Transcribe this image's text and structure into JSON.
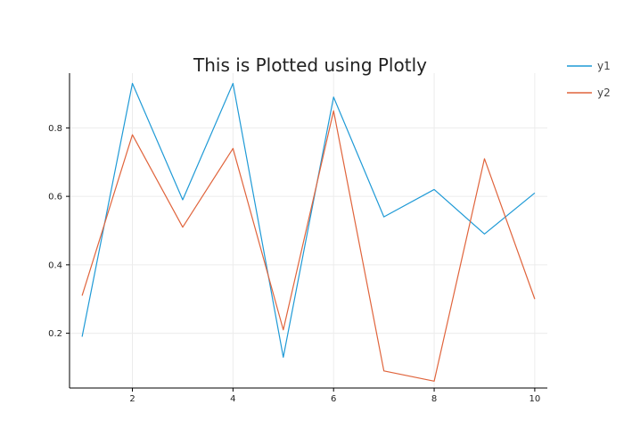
{
  "chart_data": {
    "type": "line",
    "title": "This is Plotted using Plotly",
    "xlabel": "",
    "ylabel": "",
    "x": [
      1,
      2,
      3,
      4,
      5,
      6,
      7,
      8,
      9,
      10
    ],
    "series": [
      {
        "name": "y1",
        "color": "#1f9ad6",
        "values": [
          0.19,
          0.93,
          0.59,
          0.93,
          0.13,
          0.89,
          0.54,
          0.62,
          0.49,
          0.61
        ]
      },
      {
        "name": "y2",
        "color": "#e0643c",
        "values": [
          0.31,
          0.78,
          0.51,
          0.74,
          0.21,
          0.85,
          0.09,
          0.06,
          0.71,
          0.3
        ]
      }
    ],
    "xlim": [
      0.75,
      10.25
    ],
    "ylim": [
      0.04,
      0.96
    ],
    "xticks": [
      2,
      4,
      6,
      8,
      10
    ],
    "yticks": [
      0.2,
      0.4,
      0.6,
      0.8
    ],
    "grid": true,
    "legend_position": "top-right"
  }
}
